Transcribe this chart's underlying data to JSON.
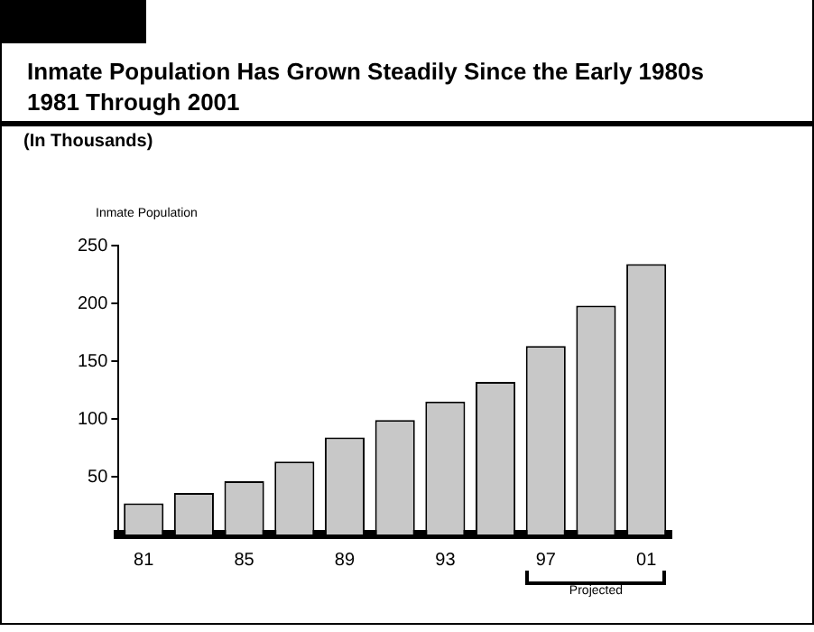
{
  "chart_data": {
    "type": "bar",
    "title": "Inmate Population Has Grown Steadily Since the Early 1980s",
    "subtitle": "1981 Through 2001",
    "ylabel": "Inmate Population",
    "annotations": [
      "(In Thousands)",
      "Projected"
    ],
    "categories": [
      "81",
      null,
      "85",
      null,
      "89",
      null,
      "93",
      null,
      "97",
      null,
      "01"
    ],
    "values": [
      27,
      36,
      46,
      63,
      84,
      99,
      115,
      132,
      163,
      198,
      234
    ],
    "color": "#c8c8c8",
    "ylim": [
      0,
      250
    ],
    "yticks": [
      50,
      100,
      150,
      200,
      250
    ]
  }
}
